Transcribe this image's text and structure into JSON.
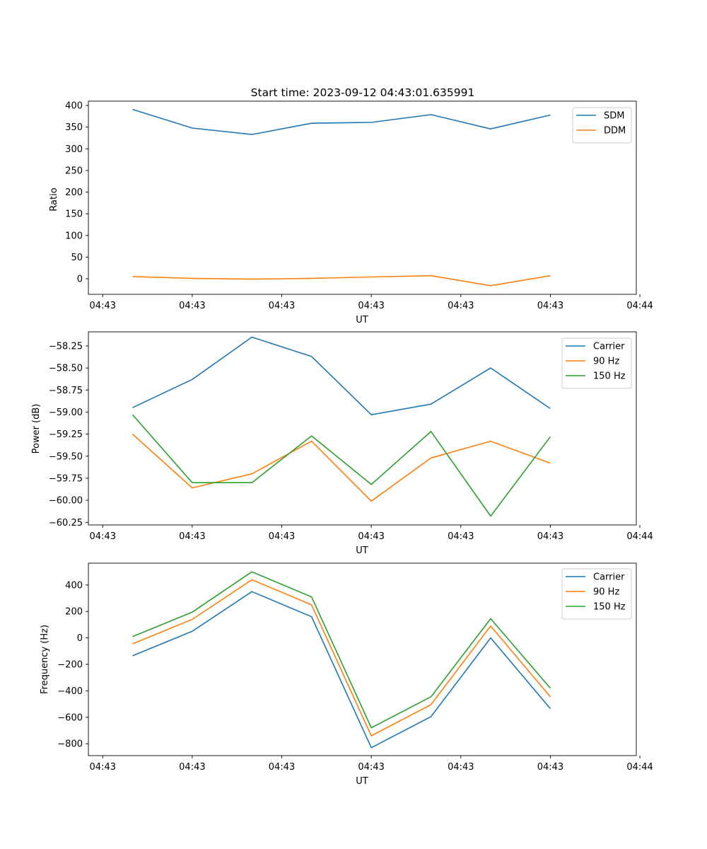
{
  "figure_title": "Start time: 2023-09-12 04:43:01.635991",
  "colors": {
    "blue": "#1f77b4",
    "orange": "#ff7f0e",
    "green": "#2ca02c"
  },
  "chart_data": [
    {
      "type": "line",
      "title": "Start time: 2023-09-12 04:43:01.635991",
      "xlabel": "UT",
      "ylabel": "Ratio",
      "x": [
        1,
        2,
        3,
        4,
        5,
        6,
        7,
        8
      ],
      "xlim": [
        0.26,
        9.44
      ],
      "x_ticks": [
        0.5,
        2,
        3.5,
        5,
        6.5,
        8,
        9.5
      ],
      "x_tick_labels": [
        "04:43",
        "04:43",
        "04:43",
        "04:43",
        "04:43",
        "04:43",
        "04:44"
      ],
      "ylim": [
        -36,
        410
      ],
      "y_ticks": [
        0,
        50,
        100,
        150,
        200,
        250,
        300,
        350,
        400
      ],
      "y_tick_labels": [
        "0",
        "50",
        "100",
        "150",
        "200",
        "250",
        "300",
        "350",
        "400"
      ],
      "legend_position": "top-right",
      "series": [
        {
          "name": "SDM",
          "color": "#1f77b4",
          "values": [
            391,
            348,
            333,
            359,
            361,
            379,
            346,
            378
          ]
        },
        {
          "name": "DDM",
          "color": "#ff7f0e",
          "values": [
            5,
            1,
            -1,
            1,
            4,
            7,
            -16,
            7
          ]
        }
      ]
    },
    {
      "type": "line",
      "title": "",
      "xlabel": "UT",
      "ylabel": "Power (dB)",
      "x": [
        1,
        2,
        3,
        4,
        5,
        6,
        7,
        8
      ],
      "xlim": [
        0.26,
        9.44
      ],
      "x_ticks": [
        0.5,
        2,
        3.5,
        5,
        6.5,
        8,
        9.5
      ],
      "x_tick_labels": [
        "04:43",
        "04:43",
        "04:43",
        "04:43",
        "04:43",
        "04:43",
        "04:44"
      ],
      "ylim": [
        -60.28,
        -58.09
      ],
      "y_ticks": [
        -60.25,
        -60.0,
        -59.75,
        -59.5,
        -59.25,
        -59.0,
        -58.75,
        -58.5,
        -58.25
      ],
      "y_tick_labels": [
        "−60.25",
        "−60.00",
        "−59.75",
        "−59.50",
        "−59.25",
        "−59.00",
        "−58.75",
        "−58.50",
        "−58.25"
      ],
      "legend_position": "top-right",
      "series": [
        {
          "name": "Carrier",
          "color": "#1f77b4",
          "values": [
            -58.95,
            -58.63,
            -58.15,
            -58.37,
            -59.03,
            -58.91,
            -58.5,
            -58.96
          ]
        },
        {
          "name": "90 Hz",
          "color": "#ff7f0e",
          "values": [
            -59.25,
            -59.86,
            -59.7,
            -59.33,
            -60.01,
            -59.52,
            -59.33,
            -59.58
          ]
        },
        {
          "name": "150 Hz",
          "color": "#2ca02c",
          "values": [
            -59.03,
            -59.8,
            -59.8,
            -59.27,
            -59.82,
            -59.22,
            -60.18,
            -59.28
          ]
        }
      ]
    },
    {
      "type": "line",
      "title": "",
      "xlabel": "UT",
      "ylabel": "Frequency (Hz)",
      "x": [
        1,
        2,
        3,
        4,
        5,
        6,
        7,
        8
      ],
      "xlim": [
        0.26,
        9.44
      ],
      "x_ticks": [
        0.5,
        2,
        3.5,
        5,
        6.5,
        8,
        9.5
      ],
      "x_tick_labels": [
        "04:43",
        "04:43",
        "04:43",
        "04:43",
        "04:43",
        "04:43",
        "04:44"
      ],
      "ylim": [
        -890,
        565
      ],
      "y_ticks": [
        -800,
        -600,
        -400,
        -200,
        0,
        200,
        400
      ],
      "y_tick_labels": [
        "−800",
        "−600",
        "−400",
        "−200",
        "0",
        "200",
        "400"
      ],
      "legend_position": "top-right",
      "series": [
        {
          "name": "Carrier",
          "color": "#1f77b4",
          "values": [
            -135,
            50,
            350,
            160,
            -830,
            -595,
            0,
            -535
          ]
        },
        {
          "name": "90 Hz",
          "color": "#ff7f0e",
          "values": [
            -45,
            140,
            440,
            250,
            -740,
            -505,
            90,
            -445
          ]
        },
        {
          "name": "150 Hz",
          "color": "#2ca02c",
          "values": [
            10,
            195,
            500,
            310,
            -680,
            -445,
            145,
            -380
          ]
        }
      ]
    }
  ]
}
